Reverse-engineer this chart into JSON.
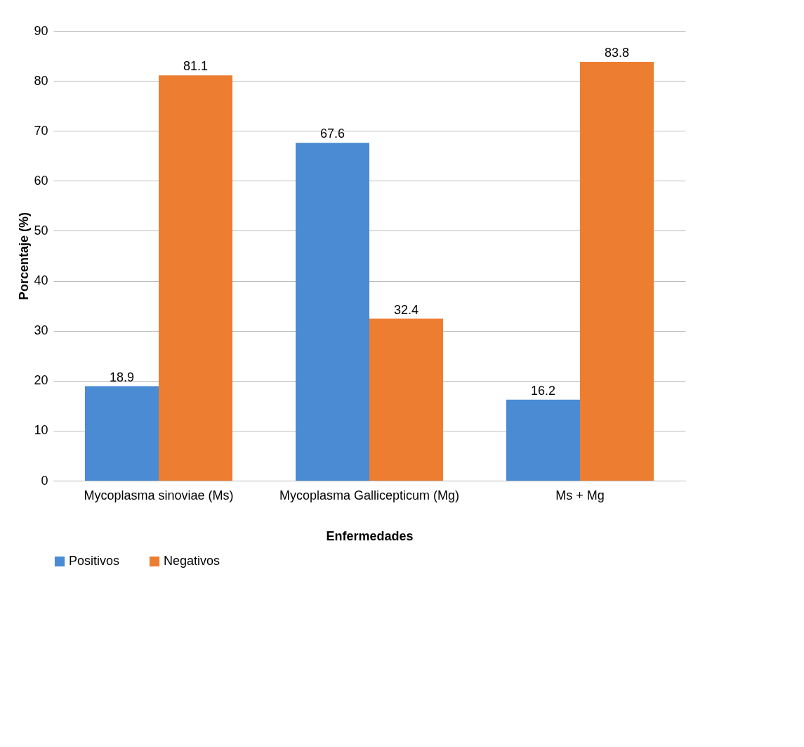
{
  "chart_data": {
    "type": "bar",
    "xlabel": "Enfermedades",
    "ylabel": "Porcentaje (%)",
    "categories": [
      "Mycoplasma sinoviae (Ms)",
      "Mycoplasma Gallicepticum (Mg)",
      "Ms + Mg"
    ],
    "series": [
      {
        "name": "Positivos",
        "color": "#4a8bd3",
        "values": [
          18.9,
          67.6,
          16.2
        ]
      },
      {
        "name": "Negativos",
        "color": "#ed7d31",
        "values": [
          81.1,
          32.4,
          83.8
        ]
      }
    ],
    "ylim": [
      0,
      90
    ],
    "yticks": [
      0,
      10,
      20,
      30,
      40,
      50,
      60,
      70,
      80,
      90
    ],
    "grid": "y",
    "legend": "bottom",
    "data_labels": true
  }
}
